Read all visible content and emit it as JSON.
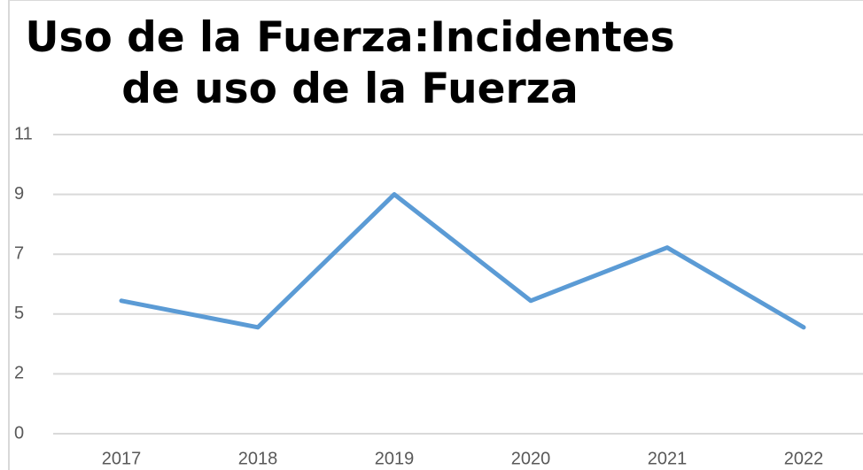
{
  "chart_data": {
    "type": "line",
    "title": "Uso de la Fuerza:Incidentes de uso de la Fuerza",
    "categories": [
      "2017",
      "2018",
      "2019",
      "2020",
      "2021",
      "2022"
    ],
    "values": [
      5,
      4,
      9,
      5,
      7,
      4
    ],
    "color": "#5b9bd5",
    "ylim": [
      0,
      11.25
    ],
    "yticks": [
      0,
      {
        "value": 2.25,
        "label": "2"
      },
      {
        "value": 4.5,
        "label": "5"
      },
      {
        "value": 6.75,
        "label": "7"
      },
      9,
      {
        "value": 11.25,
        "label": "11"
      }
    ],
    "grid": true
  }
}
